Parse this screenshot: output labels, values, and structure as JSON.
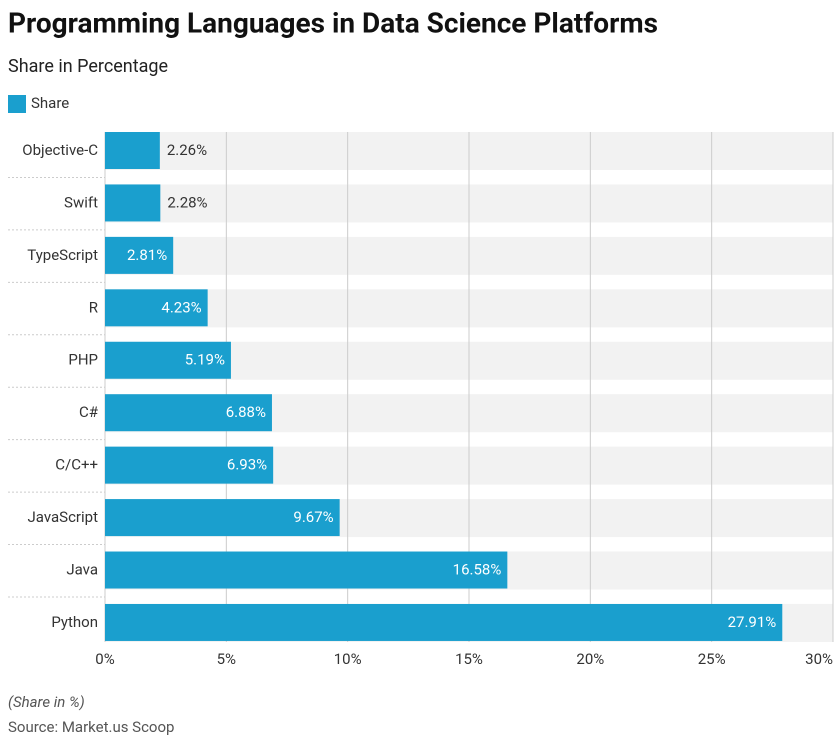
{
  "chart_data": {
    "type": "hbar",
    "title": "Programming Languages in Data Science Platforms",
    "subtitle": "Share in Percentage",
    "note": "(Share in %)",
    "source": "Source: Market.us Scoop",
    "categories": [
      "Objective-C",
      "Swift",
      "TypeScript",
      "R",
      "PHP",
      "C#",
      "C/C++",
      "JavaScript",
      "Java",
      "Python"
    ],
    "series": [
      {
        "name": "Share",
        "color": "#1a9fce",
        "values": [
          2.26,
          2.28,
          2.81,
          4.23,
          5.19,
          6.88,
          6.93,
          9.67,
          16.58,
          27.91
        ],
        "value_labels": [
          "2.26%",
          "2.28%",
          "2.81%",
          "4.23%",
          "5.19%",
          "6.88%",
          "6.93%",
          "9.67%",
          "16.58%",
          "27.91%"
        ]
      }
    ],
    "xlim": [
      0,
      30
    ],
    "xticks": [
      {
        "value": 0,
        "label": "0%"
      },
      {
        "value": 5,
        "label": "5%"
      },
      {
        "value": 10,
        "label": "10%"
      },
      {
        "value": 15,
        "label": "15%"
      },
      {
        "value": 20,
        "label": "20%"
      },
      {
        "value": 25,
        "label": "25%"
      },
      {
        "value": 30,
        "label": "30%"
      }
    ],
    "grid": true,
    "legend": "top-left"
  }
}
